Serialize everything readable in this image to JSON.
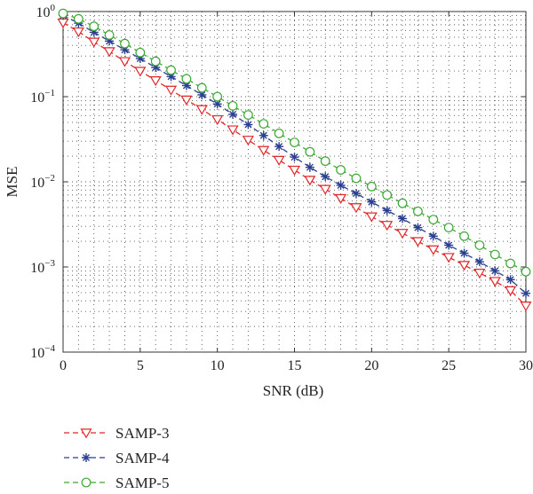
{
  "chart_data": {
    "type": "line",
    "title": "",
    "xlabel": "SNR (dB)",
    "ylabel": "MSE",
    "xlim": [
      0,
      30
    ],
    "ylim": [
      0.0001,
      1
    ],
    "yscale": "log",
    "grid": true,
    "legend_position": "bottom-left, below plot",
    "x_ticks": [
      0,
      5,
      10,
      15,
      20,
      25,
      30
    ],
    "y_ticks": [
      {
        "value": 1,
        "base": "10",
        "exp": "0"
      },
      {
        "value": 0.1,
        "base": "10",
        "exp": "−1"
      },
      {
        "value": 0.01,
        "base": "10",
        "exp": "−2"
      },
      {
        "value": 0.001,
        "base": "10",
        "exp": "−3"
      },
      {
        "value": 0.0001,
        "base": "10",
        "exp": "−4"
      }
    ],
    "x": [
      0,
      1,
      2,
      3,
      4,
      5,
      6,
      7,
      8,
      9,
      10,
      11,
      12,
      13,
      14,
      15,
      16,
      17,
      18,
      19,
      20,
      21,
      22,
      23,
      24,
      25,
      26,
      27,
      28,
      29,
      30
    ],
    "series": [
      {
        "name": "SAMP-3",
        "color": "#e0262a",
        "marker": "triangle-down",
        "values": [
          0.74,
          0.58,
          0.44,
          0.34,
          0.26,
          0.2,
          0.155,
          0.12,
          0.092,
          0.071,
          0.054,
          0.041,
          0.031,
          0.0235,
          0.018,
          0.0138,
          0.0105,
          0.0082,
          0.0064,
          0.005,
          0.0039,
          0.0031,
          0.0025,
          0.002,
          0.0016,
          0.0013,
          0.00105,
          0.00085,
          0.00068,
          0.00053,
          0.00035
        ]
      },
      {
        "name": "SAMP-4",
        "color": "#2b3f8f",
        "marker": "star",
        "values": [
          0.9,
          0.73,
          0.57,
          0.45,
          0.355,
          0.28,
          0.22,
          0.172,
          0.135,
          0.105,
          0.082,
          0.062,
          0.047,
          0.035,
          0.026,
          0.0195,
          0.0148,
          0.0115,
          0.0091,
          0.0073,
          0.0058,
          0.0046,
          0.0037,
          0.0029,
          0.0023,
          0.0018,
          0.00145,
          0.00115,
          0.0009,
          0.00071,
          0.00049
        ]
      },
      {
        "name": "SAMP-5",
        "color": "#3aa832",
        "marker": "circle",
        "values": [
          0.95,
          0.82,
          0.67,
          0.53,
          0.42,
          0.33,
          0.26,
          0.205,
          0.162,
          0.127,
          0.1,
          0.078,
          0.061,
          0.048,
          0.037,
          0.029,
          0.0225,
          0.0175,
          0.0138,
          0.011,
          0.0088,
          0.007,
          0.0056,
          0.0045,
          0.0036,
          0.0029,
          0.0023,
          0.0018,
          0.0014,
          0.0011,
          0.00088
        ]
      }
    ]
  }
}
